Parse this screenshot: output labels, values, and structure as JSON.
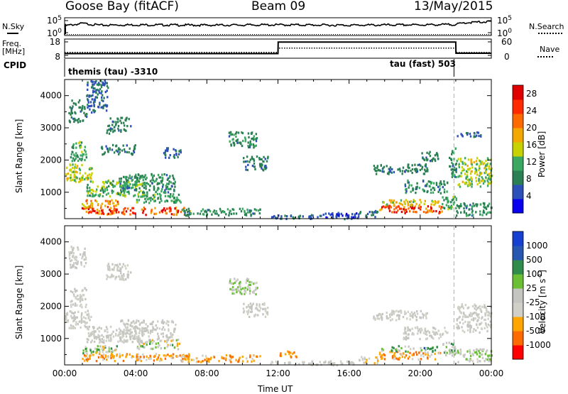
{
  "header": {
    "station": "Goose Bay (fitACF)",
    "beam": "Beam 09",
    "date": "13/May/2015"
  },
  "left_labels": {
    "nsky": "N.Sky",
    "freq_line1": "Freq.",
    "freq_line2": "[MHz]",
    "cpid": "CPID"
  },
  "right_labels": {
    "nsearch": "N.Search",
    "nave": "Nave"
  },
  "cpid": {
    "left": "themis (tau) -3310",
    "right": "tau (fast) 503"
  },
  "colors": {
    "power": [
      "#0a00f0",
      "#2c4fb8",
      "#2a7f53",
      "#3aa860",
      "#c8d200",
      "#f2a800",
      "#ff6a00",
      "#ff2a00",
      "#e00000"
    ],
    "velocity": [
      "#ff0000",
      "#ff6a00",
      "#ffa500",
      "#d0d0c8",
      "#c4c4c0",
      "#6abf35",
      "#2f8c4a",
      "#2757b0",
      "#1540d0"
    ],
    "frame": "#000000"
  },
  "chart_data": [
    {
      "name": "noise",
      "type": "line",
      "y_ticks": [
        "10^5",
        "10^0"
      ],
      "y2_ticks": [
        "10^5",
        "10^0"
      ],
      "series": [
        {
          "name": "N.Sky",
          "style": "solid",
          "x": [
            0,
            0.02,
            1,
            2,
            4,
            8,
            12,
            16,
            20,
            22,
            22.5,
            24
          ],
          "y": [
            0.05,
            0.55,
            0.68,
            0.58,
            0.6,
            0.58,
            0.6,
            0.58,
            0.6,
            0.62,
            0.72,
            0.78
          ]
        },
        {
          "name": "N.Search",
          "style": "dotted",
          "x": [
            0,
            24
          ],
          "y": [
            0,
            0
          ]
        }
      ]
    },
    {
      "name": "freq_nave",
      "type": "line",
      "y_ticks": [
        "18",
        "8"
      ],
      "y2_ticks": [
        "60",
        "0"
      ],
      "series": [
        {
          "name": "Freq",
          "style": "solid",
          "x": [
            0,
            0.02,
            12,
            12.01,
            22,
            22.01,
            24
          ],
          "y": [
            10.4,
            10.4,
            10.4,
            16.4,
            16.4,
            10.6,
            10.6
          ]
        },
        {
          "name": "Nave",
          "style": "dotted",
          "x": [
            0,
            12,
            12.01,
            22,
            22.01,
            24
          ],
          "y": [
            11,
            11,
            13.3,
            13.3,
            11,
            11
          ]
        }
      ]
    },
    {
      "name": "power",
      "type": "heatmap",
      "xlim": [
        0,
        24
      ],
      "ylim": [
        180,
        4500
      ],
      "ylabel": "Slant Range [km]",
      "y_ticks": [
        1000,
        2000,
        3000,
        4000
      ],
      "colorbar": {
        "label": "Power [dB]",
        "ticks": [
          4,
          8,
          12,
          16,
          20,
          24,
          28
        ],
        "range": [
          0,
          30
        ]
      },
      "regions": [
        {
          "x": [
            0.9,
            7.0
          ],
          "y": [
            330,
            560
          ],
          "v": [
            18,
            30
          ]
        },
        {
          "x": [
            0.9,
            3.0
          ],
          "y": [
            560,
            800
          ],
          "v": [
            14,
            24
          ]
        },
        {
          "x": [
            0.0,
            1.5
          ],
          "y": [
            1350,
            1900
          ],
          "v": [
            12,
            18
          ]
        },
        {
          "x": [
            0.3,
            1.2
          ],
          "y": [
            2000,
            2600
          ],
          "v": [
            8,
            14
          ]
        },
        {
          "x": [
            0.2,
            1.2
          ],
          "y": [
            3200,
            3900
          ],
          "v": [
            6,
            10
          ]
        },
        {
          "x": [
            1.2,
            2.4
          ],
          "y": [
            3500,
            4500
          ],
          "v": [
            4,
            8
          ]
        },
        {
          "x": [
            2.3,
            3.7
          ],
          "y": [
            2850,
            3350
          ],
          "v": [
            6,
            10
          ]
        },
        {
          "x": [
            2.0,
            4.0
          ],
          "y": [
            2200,
            2500
          ],
          "v": [
            6,
            10
          ]
        },
        {
          "x": [
            1.2,
            4.5
          ],
          "y": [
            900,
            1400
          ],
          "v": [
            8,
            16
          ]
        },
        {
          "x": [
            3.0,
            6.2
          ],
          "y": [
            1000,
            1600
          ],
          "v": [
            6,
            12
          ]
        },
        {
          "x": [
            4.0,
            6.5
          ],
          "y": [
            700,
            1000
          ],
          "v": [
            8,
            14
          ]
        },
        {
          "x": [
            5.5,
            6.5
          ],
          "y": [
            2100,
            2400
          ],
          "v": [
            4,
            8
          ]
        },
        {
          "x": [
            6.5,
            11.0
          ],
          "y": [
            300,
            520
          ],
          "v": [
            6,
            12
          ]
        },
        {
          "x": [
            9.2,
            10.8
          ],
          "y": [
            2400,
            2900
          ],
          "v": [
            6,
            12
          ]
        },
        {
          "x": [
            10.0,
            11.4
          ],
          "y": [
            1700,
            2150
          ],
          "v": [
            6,
            10
          ]
        },
        {
          "x": [
            11.5,
            16.5
          ],
          "y": [
            200,
            330
          ],
          "v": [
            4,
            8
          ]
        },
        {
          "x": [
            14.5,
            16.5
          ],
          "y": [
            250,
            400
          ],
          "v": [
            2,
            6
          ]
        },
        {
          "x": [
            16.5,
            17.6
          ],
          "y": [
            260,
            460
          ],
          "v": [
            4,
            10
          ]
        },
        {
          "x": [
            17.6,
            21.2
          ],
          "y": [
            380,
            620
          ],
          "v": [
            18,
            30
          ]
        },
        {
          "x": [
            17.6,
            21.0
          ],
          "y": [
            620,
            800
          ],
          "v": [
            12,
            20
          ]
        },
        {
          "x": [
            19.0,
            21.5
          ],
          "y": [
            1000,
            1400
          ],
          "v": [
            6,
            12
          ]
        },
        {
          "x": [
            17.3,
            20.5
          ],
          "y": [
            1600,
            1900
          ],
          "v": [
            6,
            10
          ]
        },
        {
          "x": [
            20.0,
            21.0
          ],
          "y": [
            2000,
            2300
          ],
          "v": [
            6,
            10
          ]
        },
        {
          "x": [
            21.2,
            22.0
          ],
          "y": [
            500,
            900
          ],
          "v": [
            8,
            14
          ]
        },
        {
          "x": [
            21.6,
            22.0
          ],
          "y": [
            1500,
            2400
          ],
          "v": [
            6,
            12
          ]
        },
        {
          "x": [
            22.0,
            24.0
          ],
          "y": [
            1200,
            2100
          ],
          "v": [
            10,
            18
          ]
        },
        {
          "x": [
            22.0,
            23.4
          ],
          "y": [
            2750,
            2900
          ],
          "v": [
            4,
            8
          ]
        },
        {
          "x": [
            22.0,
            24.0
          ],
          "y": [
            300,
            700
          ],
          "v": [
            6,
            12
          ]
        }
      ]
    },
    {
      "name": "velocity",
      "type": "heatmap",
      "xlim": [
        0,
        24
      ],
      "ylim": [
        180,
        4500
      ],
      "ylabel": "Slant Range [km]",
      "xlabel": "Time UT",
      "x_ticks": [
        "00:00",
        "04:00",
        "08:00",
        "12:00",
        "16:00",
        "20:00",
        "00:00"
      ],
      "y_ticks": [
        1000,
        2000,
        3000,
        4000
      ],
      "colorbar": {
        "label": "Velocity [m s^-1]",
        "ticks": [
          "1000",
          "500",
          "100",
          "25",
          "-25",
          "-100",
          "-500",
          "-1000"
        ]
      },
      "regions": [
        {
          "x": [
            0.9,
            7.0
          ],
          "y": [
            330,
            560
          ],
          "v": [
            1,
            3
          ]
        },
        {
          "x": [
            0.9,
            3.0
          ],
          "y": [
            560,
            800
          ],
          "v": [
            2,
            6
          ]
        },
        {
          "x": [
            0.0,
            1.5
          ],
          "y": [
            1350,
            1900
          ],
          "v": [
            3,
            4
          ]
        },
        {
          "x": [
            0.3,
            1.2
          ],
          "y": [
            2000,
            2600
          ],
          "v": [
            3,
            4
          ]
        },
        {
          "x": [
            0.2,
            1.2
          ],
          "y": [
            3200,
            3900
          ],
          "v": [
            3,
            4
          ]
        },
        {
          "x": [
            2.3,
            3.7
          ],
          "y": [
            2850,
            3350
          ],
          "v": [
            3,
            4
          ]
        },
        {
          "x": [
            1.2,
            4.5
          ],
          "y": [
            900,
            1400
          ],
          "v": [
            3,
            4
          ]
        },
        {
          "x": [
            3.0,
            6.2
          ],
          "y": [
            1000,
            1600
          ],
          "v": [
            3,
            4
          ]
        },
        {
          "x": [
            4.0,
            6.5
          ],
          "y": [
            700,
            1000
          ],
          "v": [
            2,
            6
          ]
        },
        {
          "x": [
            6.5,
            11.0
          ],
          "y": [
            300,
            520
          ],
          "v": [
            1,
            3
          ]
        },
        {
          "x": [
            9.2,
            10.8
          ],
          "y": [
            2400,
            2900
          ],
          "v": [
            3,
            5
          ]
        },
        {
          "x": [
            10.0,
            11.4
          ],
          "y": [
            1700,
            2150
          ],
          "v": [
            3,
            4
          ]
        },
        {
          "x": [
            11.5,
            16.5
          ],
          "y": [
            200,
            330
          ],
          "v": [
            3,
            4
          ]
        },
        {
          "x": [
            12.0,
            13.0
          ],
          "y": [
            450,
            650
          ],
          "v": [
            1,
            2
          ]
        },
        {
          "x": [
            16.5,
            17.6
          ],
          "y": [
            260,
            460
          ],
          "v": [
            2,
            4
          ]
        },
        {
          "x": [
            17.6,
            21.2
          ],
          "y": [
            380,
            620
          ],
          "v": [
            1,
            3
          ]
        },
        {
          "x": [
            17.6,
            21.0
          ],
          "y": [
            620,
            800
          ],
          "v": [
            3,
            7
          ]
        },
        {
          "x": [
            19.0,
            21.5
          ],
          "y": [
            1000,
            1400
          ],
          "v": [
            3,
            4
          ]
        },
        {
          "x": [
            17.3,
            20.5
          ],
          "y": [
            1600,
            1900
          ],
          "v": [
            3,
            4
          ]
        },
        {
          "x": [
            21.2,
            22.0
          ],
          "y": [
            500,
            900
          ],
          "v": [
            3,
            6
          ]
        },
        {
          "x": [
            22.0,
            24.0
          ],
          "y": [
            1200,
            2100
          ],
          "v": [
            3,
            4
          ]
        },
        {
          "x": [
            22.0,
            24.0
          ],
          "y": [
            300,
            700
          ],
          "v": [
            3,
            5
          ]
        }
      ]
    }
  ]
}
